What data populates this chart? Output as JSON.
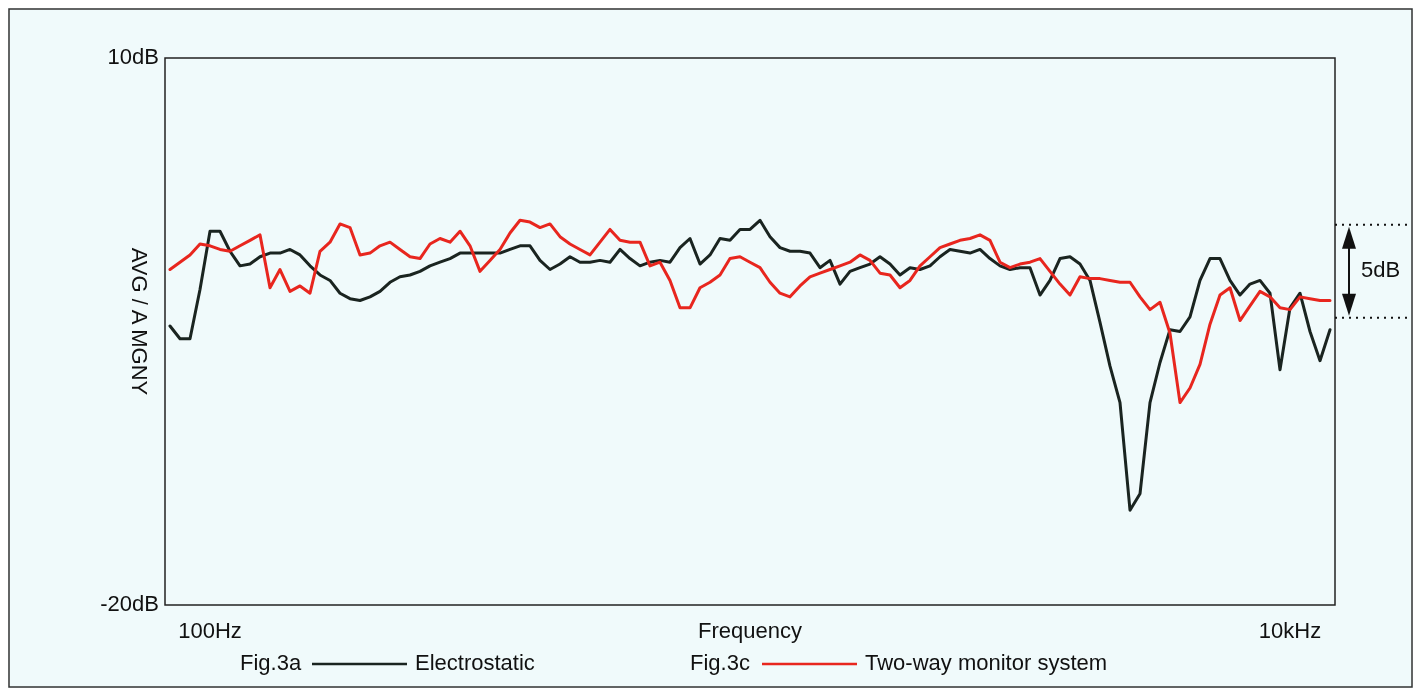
{
  "chart_data": {
    "type": "line",
    "ylabel": "AVG / A MGNY",
    "xlabel": "Frequency",
    "ylim": [
      -20,
      10
    ],
    "yticks": [
      {
        "value": 10,
        "label": "10dB"
      },
      {
        "value": -20,
        "label": "-20dB"
      }
    ],
    "grid": false,
    "legend": "bottom",
    "line_style": "solid",
    "marker": "none",
    "annotations": [
      "Fig.3a",
      "Fig.3c",
      "5dB"
    ],
    "categories": [
      null,
      null,
      null,
      null,
      "100Hz",
      null,
      null,
      null,
      null,
      null,
      null,
      null,
      null,
      null,
      null,
      null,
      null,
      null,
      null,
      null,
      null,
      null,
      null,
      null,
      null,
      null,
      null,
      null,
      null,
      null,
      null,
      null,
      null,
      null,
      null,
      null,
      null,
      null,
      null,
      null,
      null,
      null,
      null,
      null,
      null,
      null,
      null,
      null,
      null,
      null,
      null,
      null,
      null,
      null,
      null,
      null,
      null,
      null,
      null,
      null,
      null,
      null,
      null,
      null,
      null,
      null,
      null,
      null,
      null,
      null,
      null,
      null,
      null,
      null,
      null,
      null,
      null,
      null,
      null,
      null,
      null,
      null,
      null,
      null,
      null,
      null,
      null,
      null,
      null,
      null,
      null,
      null,
      null,
      null,
      null,
      null,
      null,
      null,
      null,
      null,
      null,
      null,
      null,
      null,
      null,
      null,
      null,
      null,
      null,
      null,
      null,
      null,
      "10kHz",
      null,
      null,
      null,
      null
    ],
    "series": [
      {
        "name": "Electrostatic",
        "color": "#1a2420",
        "values": [
          -4.7,
          -5.4,
          -5.4,
          -2.7,
          0.5,
          0.5,
          -0.6,
          -1.4,
          -1.3,
          -0.9,
          -0.7,
          -0.7,
          -0.5,
          -0.8,
          -1.4,
          -1.9,
          -2.2,
          -2.9,
          -3.2,
          -3.3,
          -3.1,
          -2.8,
          -2.3,
          -2.0,
          -1.9,
          -1.7,
          -1.4,
          -1.2,
          -1.0,
          -0.7,
          -0.7,
          -0.7,
          -0.7,
          -0.7,
          -0.5,
          -0.3,
          -0.3,
          -1.1,
          -1.6,
          -1.3,
          -0.9,
          -1.2,
          -1.2,
          -1.1,
          -1.2,
          -0.5,
          -1.0,
          -1.4,
          -1.2,
          -1.1,
          -1.2,
          -0.4,
          0.1,
          -1.3,
          -0.8,
          0.1,
          0.0,
          0.6,
          0.6,
          1.1,
          0.2,
          -0.4,
          -0.6,
          -0.6,
          -0.7,
          -1.5,
          -1.1,
          -2.4,
          -1.7,
          -1.5,
          -1.3,
          -0.9,
          -1.3,
          -1.9,
          -1.5,
          -1.6,
          -1.4,
          -0.9,
          -0.5,
          -0.6,
          -0.7,
          -0.5,
          -1.0,
          -1.4,
          -1.6,
          -1.5,
          -1.5,
          -3.0,
          -2.2,
          -1.0,
          -0.9,
          -1.3,
          -2.2,
          -4.5,
          -6.9,
          -8.9,
          -14.8,
          -13.9,
          -8.9,
          -6.7,
          -4.9,
          -5.0,
          -4.2,
          -2.2,
          -1.0,
          -1.0,
          -2.2,
          -3.0,
          -2.4,
          -2.2,
          -2.9,
          -7.1,
          -3.7,
          -2.9,
          -5.0,
          -6.6,
          -4.9
        ]
      },
      {
        "name": "Two-way monitor system",
        "color": "#e8261e",
        "values": [
          -1.6,
          -1.2,
          -0.8,
          -0.2,
          -0.3,
          -0.5,
          -0.6,
          -0.3,
          0.0,
          0.3,
          -2.6,
          -1.6,
          -2.8,
          -2.5,
          -2.9,
          -0.6,
          -0.1,
          0.9,
          0.7,
          -0.8,
          -0.7,
          -0.3,
          -0.1,
          -0.5,
          -0.9,
          -1.0,
          -0.2,
          0.1,
          -0.1,
          0.5,
          -0.3,
          -1.7,
          -1.1,
          -0.5,
          0.4,
          1.1,
          1.0,
          0.7,
          0.9,
          0.2,
          -0.2,
          -0.5,
          -0.8,
          -0.1,
          0.6,
          0.0,
          -0.1,
          -0.1,
          -1.4,
          -1.2,
          -2.2,
          -3.7,
          -3.7,
          -2.6,
          -2.3,
          -1.9,
          -1.0,
          -0.9,
          -1.2,
          -1.5,
          -2.3,
          -2.9,
          -3.1,
          -2.5,
          -2.0,
          -1.8,
          -1.6,
          -1.4,
          -1.2,
          -0.8,
          -1.1,
          -1.8,
          -1.9,
          -2.6,
          -2.2,
          -1.4,
          -0.9,
          -0.4,
          -0.2,
          0.0,
          0.1,
          0.3,
          0.0,
          -1.2,
          -1.5,
          -1.3,
          -1.2,
          -1.0,
          -1.7,
          -2.4,
          -3.0,
          -2.0,
          -2.1,
          -2.1,
          -2.2,
          -2.3,
          -2.3,
          -3.1,
          -3.8,
          -3.4,
          -5.1,
          -8.9,
          -8.1,
          -6.8,
          -4.6,
          -3.0,
          -2.6,
          -4.4,
          -3.6,
          -2.8,
          -3.1,
          -3.7,
          -3.8,
          -3.1,
          -3.2,
          -3.3,
          -3.3
        ]
      }
    ]
  }
}
